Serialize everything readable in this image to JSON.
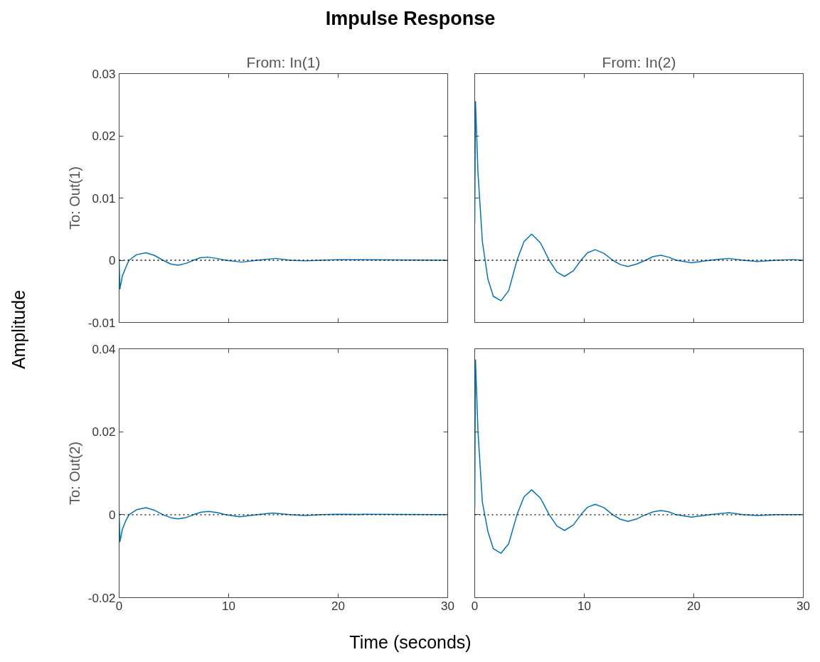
{
  "chart_data": [
    {
      "type": "line",
      "title": "From: In(1)",
      "ylabel": "To: Out(1)",
      "annotations": [
        "Impulse Response",
        "Amplitude",
        "Time (seconds)"
      ],
      "xlim": [
        0,
        30
      ],
      "xticks": [
        0,
        10,
        20,
        30
      ],
      "ylim": [
        -0.01,
        0.03
      ],
      "yticks": [
        -0.01,
        0,
        0.01,
        0.02,
        0.03
      ],
      "tick_labels": "y",
      "ref_lines": [
        {
          "axis": "y",
          "value": 0,
          "color": "#000000",
          "line_style": "dotted"
        }
      ],
      "series": [
        {
          "color": "#0072bd",
          "x": [
            0,
            0.07,
            0.3,
            0.6,
            0.9,
            1.6,
            2.45,
            3.2,
            4.0,
            4.7,
            5.4,
            6.1,
            6.8,
            7.4,
            8.1,
            8.9,
            9.7,
            11.2,
            12.6,
            14.3,
            15.6,
            17,
            18.4,
            20,
            30
          ],
          "values": [
            0,
            -0.0046,
            -0.0025,
            -0.0012,
            0,
            0.0009,
            0.0012,
            0.0008,
            0,
            -0.0006,
            -0.0008,
            -0.0005,
            0,
            0.0004,
            0.0005,
            0.0003,
            0,
            -0.0003,
            0,
            0.0003,
            0,
            -0.0001,
            0,
            0.0001,
            0
          ]
        }
      ]
    },
    {
      "type": "line",
      "title": "From: In(2)",
      "xlim": [
        0,
        30
      ],
      "xticks": [
        0,
        10,
        20,
        30
      ],
      "ylim": [
        -0.01,
        0.03
      ],
      "yticks": [
        -0.01,
        0,
        0.01,
        0.02,
        0.03
      ],
      "tick_labels": false,
      "ref_lines": [
        {
          "axis": "y",
          "value": 0,
          "color": "#000000",
          "line_style": "dotted"
        }
      ],
      "series": [
        {
          "color": "#0072bd",
          "x": [
            0,
            0.07,
            0.3,
            0.7,
            1.2,
            1.7,
            2.4,
            3.1,
            3.86,
            4.5,
            5.2,
            6.0,
            6.8,
            7.5,
            8.2,
            9.0,
            9.7,
            10.3,
            11.0,
            11.8,
            12.6,
            13.3,
            14.0,
            14.8,
            15.6,
            16.3,
            17.0,
            17.7,
            18.4,
            19.8,
            21.5,
            23.2,
            24.5,
            25.8,
            27.5,
            29,
            30
          ],
          "values": [
            0.0059,
            0.0255,
            0.014,
            0.003,
            -0.003,
            -0.0058,
            -0.0065,
            -0.0049,
            0,
            0.003,
            0.0042,
            0.0028,
            0,
            -0.0019,
            -0.0026,
            -0.0017,
            0,
            0.0012,
            0.0017,
            0.0011,
            0,
            -0.0007,
            -0.001,
            -0.0006,
            0,
            0.0006,
            0.0008,
            0.0005,
            0,
            -0.0004,
            0,
            0.0003,
            0,
            -0.0002,
            0,
            0.0001,
            0
          ]
        }
      ]
    },
    {
      "type": "line",
      "ylabel": "To: Out(2)",
      "xlim": [
        0,
        30
      ],
      "xticks": [
        0,
        10,
        20,
        30
      ],
      "ylim": [
        -0.02,
        0.04
      ],
      "yticks": [
        -0.02,
        0,
        0.02,
        0.04
      ],
      "ref_lines": [
        {
          "axis": "y",
          "value": 0,
          "color": "#000000",
          "line_style": "dotted"
        }
      ],
      "series": [
        {
          "color": "#0072bd",
          "x": [
            0,
            0.07,
            0.3,
            0.6,
            0.9,
            1.6,
            2.45,
            3.2,
            4.0,
            4.7,
            5.4,
            6.1,
            6.8,
            7.5,
            8.2,
            9.0,
            9.7,
            11.0,
            12.6,
            14.0,
            15.6,
            17,
            18.4,
            20,
            30
          ],
          "values": [
            0.001,
            -0.0065,
            -0.0035,
            -0.0015,
            0,
            0.0012,
            0.0017,
            0.0011,
            0,
            -0.0007,
            -0.001,
            -0.0007,
            0,
            0.0006,
            0.0008,
            0.0005,
            0,
            -0.0005,
            0,
            0.0004,
            0,
            -0.0002,
            0,
            0.0001,
            0
          ]
        }
      ]
    },
    {
      "type": "line",
      "xlim": [
        0,
        30
      ],
      "xticks": [
        0,
        10,
        20,
        30
      ],
      "ylim": [
        -0.02,
        0.04
      ],
      "yticks": [
        -0.02,
        0,
        0.02,
        0.04
      ],
      "tick_labels": "x",
      "ref_lines": [
        {
          "axis": "y",
          "value": 0,
          "color": "#000000",
          "line_style": "dotted"
        }
      ],
      "series": [
        {
          "color": "#0072bd",
          "x": [
            0,
            0.07,
            0.3,
            0.7,
            1.2,
            1.7,
            2.4,
            3.1,
            3.86,
            4.5,
            5.2,
            6.0,
            6.8,
            7.5,
            8.2,
            9.0,
            9.7,
            10.3,
            11.0,
            11.8,
            12.6,
            13.3,
            14.0,
            14.8,
            15.6,
            16.3,
            17.0,
            17.7,
            18.4,
            19.8,
            21.5,
            23.2,
            24.5,
            25.8,
            27.5,
            30
          ],
          "values": [
            0.0015,
            0.0373,
            0.02,
            0.003,
            -0.004,
            -0.0082,
            -0.0093,
            -0.007,
            0,
            0.0043,
            0.006,
            0.004,
            0,
            -0.0027,
            -0.0038,
            -0.0025,
            0,
            0.0018,
            0.0025,
            0.0017,
            0,
            -0.0011,
            -0.0016,
            -0.001,
            0,
            0.0007,
            0.001,
            0.0007,
            0,
            -0.0006,
            0,
            0.0005,
            0,
            -0.0002,
            0,
            0
          ]
        }
      ]
    }
  ]
}
